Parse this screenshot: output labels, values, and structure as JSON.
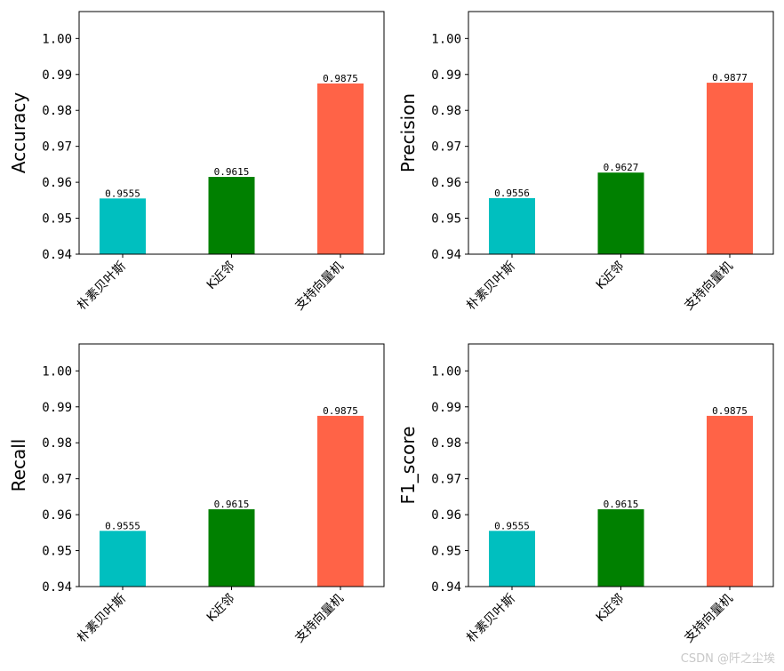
{
  "watermark": "CSDN @阡之尘埃",
  "chart_data": [
    {
      "type": "bar",
      "categories": [
        "朴素贝叶斯",
        "K近邻",
        "支持向量机"
      ],
      "values": [
        0.9555,
        0.9615,
        0.9875
      ],
      "data_labels": [
        "0.9555",
        "0.9615",
        "0.9875"
      ],
      "colors": [
        "#00bfbf",
        "#008000",
        "#ff6347"
      ],
      "ylabel": "Accuracy",
      "xlabel": "",
      "title": "",
      "ylim": [
        0.94,
        1.0075
      ],
      "yticks": [
        0.94,
        0.95,
        0.96,
        0.97,
        0.98,
        0.99,
        1.0
      ],
      "ytick_labels": [
        "0.94",
        "0.95",
        "0.96",
        "0.97",
        "0.98",
        "0.99",
        "1.00"
      ],
      "grid": false
    },
    {
      "type": "bar",
      "categories": [
        "朴素贝叶斯",
        "K近邻",
        "支持向量机"
      ],
      "values": [
        0.9556,
        0.9627,
        0.9877
      ],
      "data_labels": [
        "0.9556",
        "0.9627",
        "0.9877"
      ],
      "colors": [
        "#00bfbf",
        "#008000",
        "#ff6347"
      ],
      "ylabel": "Precision",
      "xlabel": "",
      "title": "",
      "ylim": [
        0.94,
        1.0075
      ],
      "yticks": [
        0.94,
        0.95,
        0.96,
        0.97,
        0.98,
        0.99,
        1.0
      ],
      "ytick_labels": [
        "0.94",
        "0.95",
        "0.96",
        "0.97",
        "0.98",
        "0.99",
        "1.00"
      ],
      "grid": false
    },
    {
      "type": "bar",
      "categories": [
        "朴素贝叶斯",
        "K近邻",
        "支持向量机"
      ],
      "values": [
        0.9555,
        0.9615,
        0.9875
      ],
      "data_labels": [
        "0.9555",
        "0.9615",
        "0.9875"
      ],
      "colors": [
        "#00bfbf",
        "#008000",
        "#ff6347"
      ],
      "ylabel": "Recall",
      "xlabel": "",
      "title": "",
      "ylim": [
        0.94,
        1.0075
      ],
      "yticks": [
        0.94,
        0.95,
        0.96,
        0.97,
        0.98,
        0.99,
        1.0
      ],
      "ytick_labels": [
        "0.94",
        "0.95",
        "0.96",
        "0.97",
        "0.98",
        "0.99",
        "1.00"
      ],
      "grid": false
    },
    {
      "type": "bar",
      "categories": [
        "朴素贝叶斯",
        "K近邻",
        "支持向量机"
      ],
      "values": [
        0.9555,
        0.9615,
        0.9875
      ],
      "data_labels": [
        "0.9555",
        "0.9615",
        "0.9875"
      ],
      "colors": [
        "#00bfbf",
        "#008000",
        "#ff6347"
      ],
      "ylabel": "F1_score",
      "xlabel": "",
      "title": "",
      "ylim": [
        0.94,
        1.0075
      ],
      "yticks": [
        0.94,
        0.95,
        0.96,
        0.97,
        0.98,
        0.99,
        1.0
      ],
      "ytick_labels": [
        "0.94",
        "0.95",
        "0.96",
        "0.97",
        "0.98",
        "0.99",
        "1.00"
      ],
      "grid": false
    }
  ]
}
